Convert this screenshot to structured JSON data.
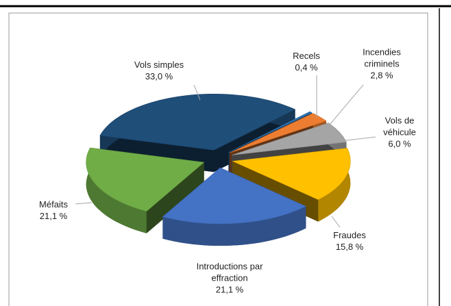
{
  "chart_data": {
    "type": "pie",
    "categories": [
      "Vols simples",
      "Recels",
      "Incendies criminels",
      "Vols de véhicule",
      "Fraudes",
      "Introductions par effraction",
      "Méfaits"
    ],
    "values": [
      33.0,
      0.4,
      2.8,
      6.0,
      15.8,
      21.1,
      21.1
    ],
    "value_labels": [
      "33,0 %",
      "0,4 %",
      "2,8 %",
      "6,0 %",
      "15,8 %",
      "21,1 %",
      "21,1 %"
    ],
    "colors": [
      "#1f4e79",
      "#2e75b6",
      "#ed7d31",
      "#a5a5a5",
      "#ffc000",
      "#4472c4",
      "#70ad47"
    ]
  }
}
